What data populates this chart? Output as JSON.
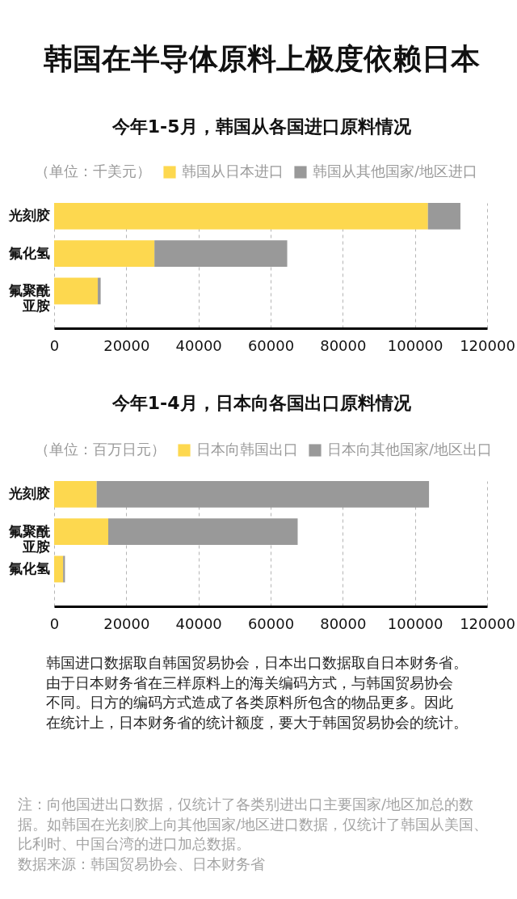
{
  "chart_data": [
    {
      "type": "bar",
      "orientation": "horizontal",
      "stacked": true,
      "title": "韩国在半导体原料上极度依赖日本",
      "subtitle": "今年1-5月，韩国从各国进口原料情况",
      "legend_title": "（单位：千美元）",
      "legend": "top",
      "categories": [
        "光刻胶",
        "氟化氢",
        "氟聚酰亚胺"
      ],
      "series": [
        {
          "name": "韩国从日本进口",
          "color": "#fdd84f",
          "values": [
            103600,
            27800,
            12100
          ]
        },
        {
          "name": "韩国从其他国家/地区进口",
          "color": "#999999",
          "values": [
            9000,
            36800,
            800
          ]
        }
      ],
      "xlim": [
        0,
        120000
      ],
      "xticks": [
        0,
        20000,
        40000,
        60000,
        80000,
        100000,
        120000
      ],
      "grid": "x"
    },
    {
      "type": "bar",
      "orientation": "horizontal",
      "stacked": true,
      "title": "今年1-4月，日本向各国出口原料情况",
      "legend_title": "（单位：百万日元）",
      "legend": "top",
      "categories": [
        "光刻胶",
        "氟聚酰亚胺",
        "氟化氢"
      ],
      "series": [
        {
          "name": "日本向韩国出口",
          "color": "#fdd84f",
          "values": [
            11800,
            15000,
            2500
          ]
        },
        {
          "name": "日本向其他国家/地区出口",
          "color": "#999999",
          "values": [
            92100,
            52500,
            500
          ]
        }
      ],
      "xlim": [
        0,
        120000
      ],
      "xticks": [
        0,
        20000,
        40000,
        60000,
        80000,
        100000,
        120000
      ],
      "grid": "x",
      "annotations": [
        "韩国进口数据取自韩国贸易协会，日本出口数据取自日本财务省。由于日本财务省在三样原料上的海关编码方式，与韩国贸易协会不同。日方的编码方式造成了各类原料所包含的物品更多。因此在统计上，日本财务省的统计额度，要大于韩国贸易协会的统计。",
        "注：向他国进出口数据，仅统计了各类别进出口主要国家/地区加总的数据。如韩国在光刻胶上向其他国家/地区进口数据，仅统计了韩国从美国、比利时、中国台湾的进口加总数据。",
        "数据来源：韩国贸易协会、日本财务省"
      ]
    }
  ]
}
